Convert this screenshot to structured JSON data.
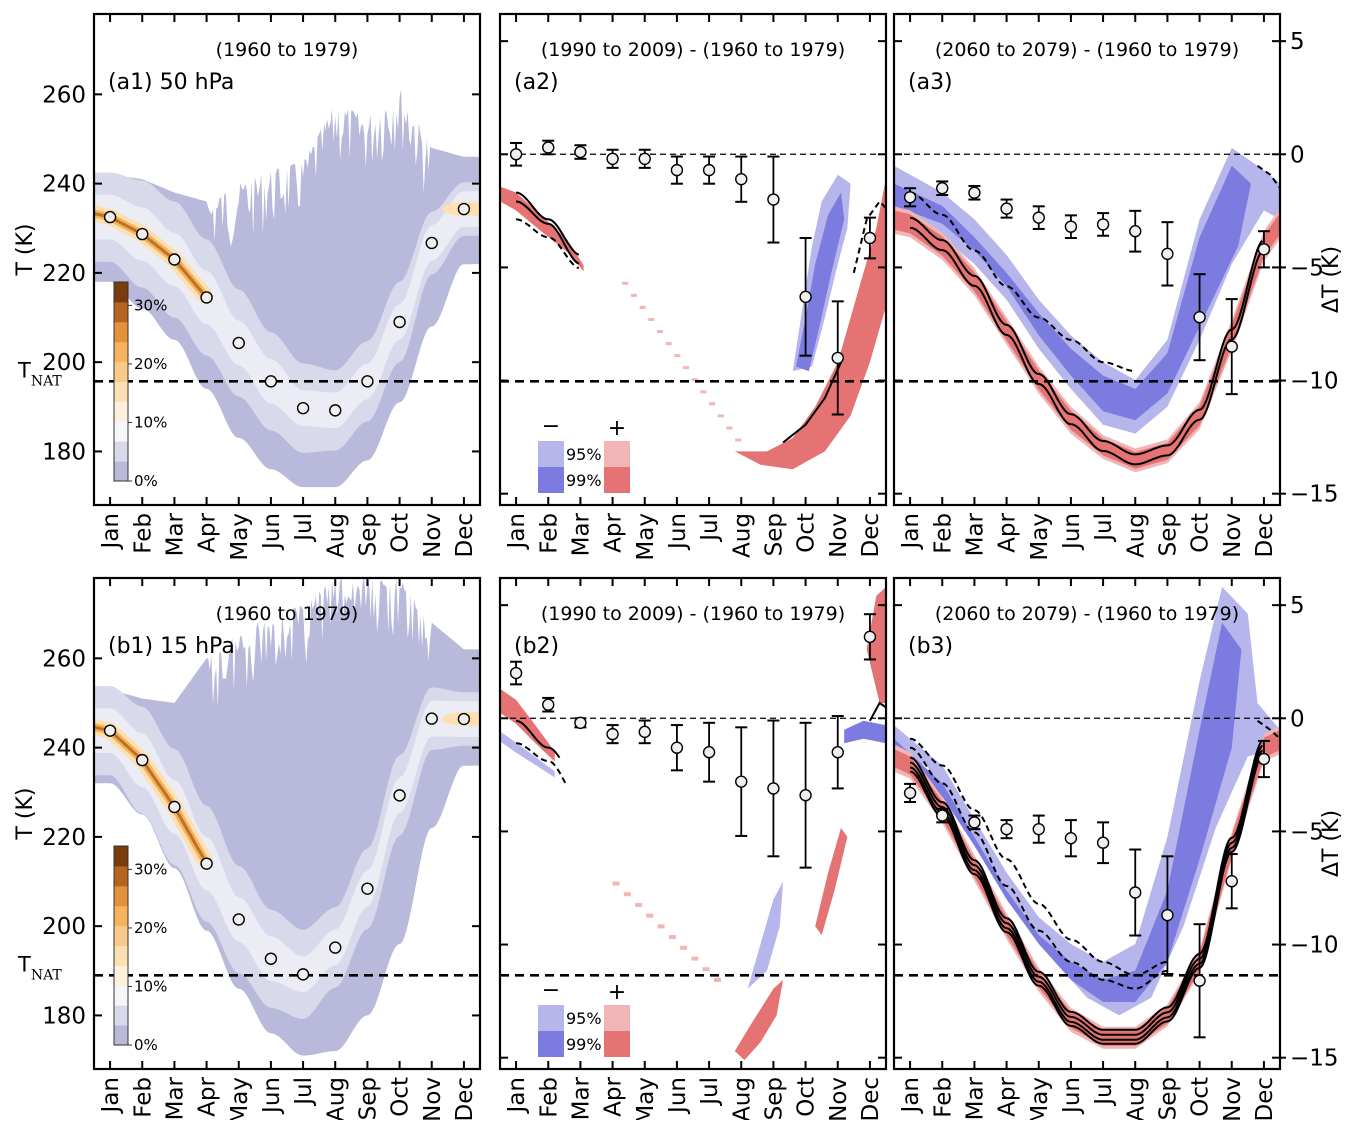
{
  "colors": {
    "purple_band": "#b9b9db",
    "purple_mid": "#d9d9ec",
    "purple_light": "#ececf5",
    "orange_core": "#b5651d",
    "orange_mid": "#f4b35c",
    "orange_light": "#fde0b2",
    "neg95": "#b6b6ec",
    "neg99": "#7b7be0",
    "pos95": "#f2b5b5",
    "pos99": "#e57373"
  },
  "months": [
    "Jan",
    "Feb",
    "Mar",
    "Apr",
    "May",
    "Jun",
    "Jul",
    "Aug",
    "Sep",
    "Oct",
    "Nov",
    "Dec"
  ],
  "y_label_T": "T (K)",
  "y_label_dT": "ΔT (K)",
  "tnat_label": "T",
  "tnat_sub": "NAT",
  "colorbar_ticks": [
    "0%",
    "10%",
    "20%",
    "30%"
  ],
  "legend": {
    "minus": "−",
    "plus": "+",
    "p95": "95%",
    "p99": "99%"
  },
  "chart_data": [
    {
      "id": "a1",
      "type": "area",
      "panel_label": "(a1) 50 hPa",
      "period": "(1960 to 1979)",
      "ylabel": "T (K)",
      "yticks": [
        180,
        200,
        220,
        240,
        260
      ],
      "ylim": [
        168,
        278
      ],
      "tnat": 195.7,
      "x": [
        "Jan",
        "Feb",
        "Mar",
        "Apr",
        "May",
        "Jun",
        "Jul",
        "Aug",
        "Sep",
        "Oct",
        "Nov",
        "Dec"
      ],
      "series": [
        {
          "values": [
            232.5,
            228.7,
            223.0,
            214.5,
            204.3,
            195.7,
            189.7,
            189.2,
            195.7,
            209.0,
            226.7,
            234.3
          ]
        },
        {
          "lower": [
            218,
            212,
            205,
            194,
            183,
            176,
            172,
            172,
            178,
            191,
            208,
            222
          ],
          "upper": [
            242,
            241,
            238,
            236,
            240,
            243,
            245,
            258,
            255,
            262,
            248,
            246
          ]
        }
      ]
    },
    {
      "id": "a2",
      "type": "scatter",
      "panel_label": "(a2)",
      "period": "(1990 to 2009) - (1960 to 1979)",
      "ylabel": "ΔT (K)",
      "yticks": [
        -15,
        -10,
        -5,
        0,
        5
      ],
      "ylim": [
        -15.5,
        6.2
      ],
      "tnat": 195.7,
      "x": [
        "Jan",
        "Feb",
        "Mar",
        "Apr",
        "May",
        "Jun",
        "Jul",
        "Aug",
        "Sep",
        "Oct",
        "Nov",
        "Dec"
      ],
      "series": [
        {
          "values": [
            0.0,
            0.3,
            0.1,
            -0.2,
            -0.2,
            -0.7,
            -0.7,
            -1.1,
            -2.0,
            -6.3,
            -9.0,
            -3.7
          ],
          "errors": [
            0.5,
            0.3,
            0.3,
            0.4,
            0.4,
            0.6,
            0.6,
            1.0,
            1.9,
            2.6,
            2.5,
            0.9
          ]
        }
      ]
    },
    {
      "id": "a3",
      "type": "scatter",
      "panel_label": "(a3)",
      "period": "(2060 to 2079) - (1960 to 1979)",
      "ylabel": "ΔT (K)",
      "yticks": [
        -15,
        -10,
        -5,
        0,
        5
      ],
      "ylim": [
        -15.5,
        6.2
      ],
      "tnat": 195.7,
      "x": [
        "Jan",
        "Feb",
        "Mar",
        "Apr",
        "May",
        "Jun",
        "Jul",
        "Aug",
        "Sep",
        "Oct",
        "Nov",
        "Dec"
      ],
      "series": [
        {
          "values": [
            -1.9,
            -1.5,
            -1.7,
            -2.4,
            -2.8,
            -3.2,
            -3.1,
            -3.4,
            -4.4,
            -7.2,
            -8.5,
            -4.2
          ],
          "errors": [
            0.4,
            0.3,
            0.3,
            0.4,
            0.5,
            0.5,
            0.5,
            0.9,
            1.4,
            1.9,
            2.1,
            0.8
          ]
        }
      ]
    },
    {
      "id": "b1",
      "type": "area",
      "panel_label": "(b1) 15 hPa",
      "period": "(1960 to 1979)",
      "ylabel": "T (K)",
      "yticks": [
        180,
        200,
        220,
        240,
        260
      ],
      "ylim": [
        168,
        278
      ],
      "tnat": 189.0,
      "x": [
        "Jan",
        "Feb",
        "Mar",
        "Apr",
        "May",
        "Jun",
        "Jul",
        "Aug",
        "Sep",
        "Oct",
        "Nov",
        "Dec"
      ],
      "series": [
        {
          "values": [
            243.8,
            237.2,
            226.7,
            214.0,
            201.5,
            192.7,
            189.2,
            195.2,
            208.4,
            229.3,
            246.5,
            246.4
          ]
        },
        {
          "lower": [
            232,
            225,
            213,
            199,
            186,
            176,
            171,
            172,
            180,
            196,
            222,
            236
          ],
          "upper": [
            253,
            251,
            250,
            260,
            266,
            270,
            272,
            278,
            278,
            278,
            268,
            262
          ]
        }
      ]
    },
    {
      "id": "b2",
      "type": "scatter",
      "panel_label": "(b2)",
      "period": "(1990 to 2009) - (1960 to 1979)",
      "ylabel": "ΔT (K)",
      "yticks": [
        -15,
        -10,
        -5,
        0,
        5
      ],
      "ylim": [
        -15.5,
        6.2
      ],
      "tnat": 189.0,
      "x": [
        "Jan",
        "Feb",
        "Mar",
        "Apr",
        "May",
        "Jun",
        "Jul",
        "Aug",
        "Sep",
        "Oct",
        "Nov",
        "Dec"
      ],
      "series": [
        {
          "values": [
            2.0,
            0.6,
            -0.2,
            -0.7,
            -0.6,
            -1.3,
            -1.5,
            -2.8,
            -3.1,
            -3.4,
            -1.5,
            3.6
          ],
          "errors": [
            0.5,
            0.3,
            0.2,
            0.4,
            0.5,
            1.0,
            1.3,
            2.4,
            3.0,
            3.2,
            1.6,
            1.0
          ]
        }
      ]
    },
    {
      "id": "b3",
      "type": "scatter",
      "panel_label": "(b3)",
      "period": "(2060 to 2079) - (1960 to 1979)",
      "ylabel": "ΔT (K)",
      "yticks": [
        -15,
        -10,
        -5,
        0,
        5
      ],
      "ylim": [
        -15.5,
        6.2
      ],
      "tnat": 189.0,
      "x": [
        "Jan",
        "Feb",
        "Mar",
        "Apr",
        "May",
        "Jun",
        "Jul",
        "Aug",
        "Sep",
        "Oct",
        "Nov",
        "Dec"
      ],
      "series": [
        {
          "values": [
            -3.3,
            -4.3,
            -4.6,
            -4.9,
            -4.9,
            -5.3,
            -5.5,
            -7.7,
            -8.7,
            -11.6,
            -7.2,
            -1.8
          ],
          "errors": [
            0.4,
            0.3,
            0.3,
            0.4,
            0.6,
            0.8,
            0.9,
            1.9,
            2.6,
            2.5,
            1.2,
            0.8
          ]
        }
      ]
    }
  ]
}
